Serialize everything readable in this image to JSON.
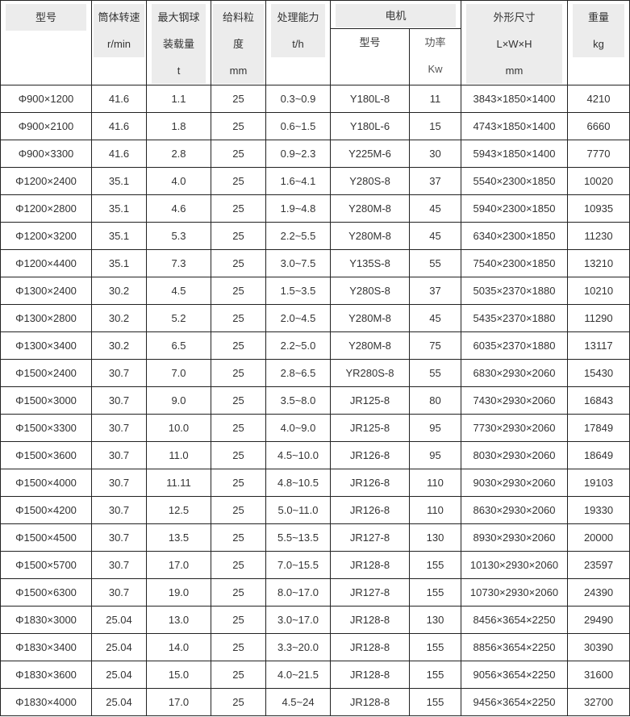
{
  "header": {
    "model": [
      "型号"
    ],
    "speed": [
      "筒体转速",
      "r/min"
    ],
    "ball": [
      "最大钢球",
      "装载量",
      "t"
    ],
    "feed": [
      "给料粒",
      "度",
      "mm"
    ],
    "capacity": [
      "处理能力",
      "t/h"
    ],
    "motor": "电机",
    "motor_model": "型号",
    "motor_power": [
      "功率",
      "Kw"
    ],
    "dims": [
      "外形尺寸",
      "L×W×H",
      "mm"
    ],
    "weight": [
      "重量",
      "kg"
    ]
  },
  "rows": [
    [
      "Φ900×1200",
      "41.6",
      "1.1",
      "25",
      "0.3~0.9",
      "Y180L-8",
      "11",
      "3843×1850×1400",
      "4210"
    ],
    [
      "Φ900×2100",
      "41.6",
      "1.8",
      "25",
      "0.6~1.5",
      "Y180L-6",
      "15",
      "4743×1850×1400",
      "6660"
    ],
    [
      "Φ900×3300",
      "41.6",
      "2.8",
      "25",
      "0.9~2.3",
      "Y225M-6",
      "30",
      "5943×1850×1400",
      "7770"
    ],
    [
      "Φ1200×2400",
      "35.1",
      "4.0",
      "25",
      "1.6~4.1",
      "Y280S-8",
      "37",
      "5540×2300×1850",
      "10020"
    ],
    [
      "Φ1200×2800",
      "35.1",
      "4.6",
      "25",
      "1.9~4.8",
      "Y280M-8",
      "45",
      "5940×2300×1850",
      "10935"
    ],
    [
      "Φ1200×3200",
      "35.1",
      "5.3",
      "25",
      "2.2~5.5",
      "Y280M-8",
      "45",
      "6340×2300×1850",
      "11230"
    ],
    [
      "Φ1200×4400",
      "35.1",
      "7.3",
      "25",
      "3.0~7.5",
      "Y135S-8",
      "55",
      "7540×2300×1850",
      "13210"
    ],
    [
      "Φ1300×2400",
      "30.2",
      "4.5",
      "25",
      "1.5~3.5",
      "Y280S-8",
      "37",
      "5035×2370×1880",
      "10210"
    ],
    [
      "Φ1300×2800",
      "30.2",
      "5.2",
      "25",
      "2.0~4.5",
      "Y280M-8",
      "45",
      "5435×2370×1880",
      "11290"
    ],
    [
      "Φ1300×3400",
      "30.2",
      "6.5",
      "25",
      "2.2~5.0",
      "Y280M-8",
      "75",
      "6035×2370×1880",
      "13117"
    ],
    [
      "Φ1500×2400",
      "30.7",
      "7.0",
      "25",
      "2.8~6.5",
      "YR280S-8",
      "55",
      "6830×2930×2060",
      "15430"
    ],
    [
      "Φ1500×3000",
      "30.7",
      "9.0",
      "25",
      "3.5~8.0",
      "JR125-8",
      "80",
      "7430×2930×2060",
      "16843"
    ],
    [
      "Φ1500×3300",
      "30.7",
      "10.0",
      "25",
      "4.0~9.0",
      "JR125-8",
      "95",
      "7730×2930×2060",
      "17849"
    ],
    [
      "Φ1500×3600",
      "30.7",
      "11.0",
      "25",
      "4.5~10.0",
      "JR126-8",
      "95",
      "8030×2930×2060",
      "18649"
    ],
    [
      "Φ1500×4000",
      "30.7",
      "11.11",
      "25",
      "4.8~10.5",
      "JR126-8",
      "110",
      "9030×2930×2060",
      "19103"
    ],
    [
      "Φ1500×4200",
      "30.7",
      "12.5",
      "25",
      "5.0~11.0",
      "JR126-8",
      "110",
      "8630×2930×2060",
      "19330"
    ],
    [
      "Φ1500×4500",
      "30.7",
      "13.5",
      "25",
      "5.5~13.5",
      "JR127-8",
      "130",
      "8930×2930×2060",
      "20000"
    ],
    [
      "Φ1500×5700",
      "30.7",
      "17.0",
      "25",
      "7.0~15.5",
      "JR128-8",
      "155",
      "10130×2930×2060",
      "23597"
    ],
    [
      "Φ1500×6300",
      "30.7",
      "19.0",
      "25",
      "8.0~17.0",
      "JR127-8",
      "155",
      "10730×2930×2060",
      "24390"
    ],
    [
      "Φ1830×3000",
      "25.04",
      "13.0",
      "25",
      "3.0~17.0",
      "JR128-8",
      "130",
      "8456×3654×2250",
      "29490"
    ],
    [
      "Φ1830×3400",
      "25.04",
      "14.0",
      "25",
      "3.3~20.0",
      "JR128-8",
      "155",
      "8856×3654×2250",
      "30390"
    ],
    [
      "Φ1830×3600",
      "25.04",
      "15.0",
      "25",
      "4.0~21.5",
      "JR128-8",
      "155",
      "9056×3654×2250",
      "31600"
    ],
    [
      "Φ1830×4000",
      "25.04",
      "17.0",
      "25",
      "4.5~24",
      "JR128-8",
      "155",
      "9456×3654×2250",
      "32700"
    ]
  ]
}
